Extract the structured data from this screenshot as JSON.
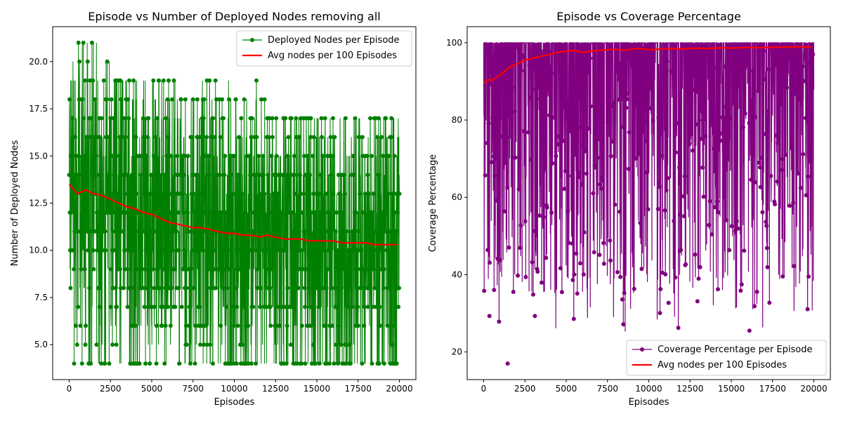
{
  "chart_data": [
    {
      "type": "line",
      "title": "Episode vs Number of Deployed Nodes removing all",
      "xlabel": "Episodes",
      "ylabel": "Number of Deployed Nodes",
      "xlim": [
        -1000,
        21000
      ],
      "ylim": [
        3.15,
        21.85
      ],
      "xticks": [
        0,
        2500,
        5000,
        7500,
        10000,
        12500,
        15000,
        17500,
        20000
      ],
      "xtick_labels": [
        "0",
        "2500",
        "5000",
        "7500",
        "10000",
        "12500",
        "15000",
        "17500",
        "20000"
      ],
      "yticks": [
        5.0,
        7.5,
        10.0,
        12.5,
        15.0,
        17.5,
        20.0
      ],
      "ytick_labels": [
        "5.0",
        "7.5",
        "10.0",
        "12.5",
        "15.0",
        "17.5",
        "20.0"
      ],
      "legend_position": "upper right",
      "series": [
        {
          "name": "Deployed Nodes per Episode",
          "color": "#008000",
          "marker": "circle",
          "episodes": 20000,
          "value_range": [
            4,
            21
          ]
        },
        {
          "name": "Avg nodes per 100 Episodes",
          "color": "#ff0000",
          "x": [
            0,
            500,
            1000,
            1500,
            2000,
            2500,
            3000,
            3500,
            4000,
            4500,
            5000,
            5500,
            6000,
            6500,
            7000,
            7500,
            8000,
            8500,
            9000,
            9500,
            10000,
            10500,
            11000,
            11500,
            12000,
            12500,
            13000,
            13500,
            14000,
            14500,
            15000,
            15500,
            16000,
            16500,
            17000,
            17500,
            18000,
            18500,
            19000,
            19500,
            19900
          ],
          "values": [
            13.5,
            13.0,
            13.2,
            13.0,
            12.9,
            12.7,
            12.5,
            12.3,
            12.2,
            12.0,
            11.9,
            11.7,
            11.5,
            11.4,
            11.3,
            11.2,
            11.2,
            11.1,
            11.0,
            10.9,
            10.9,
            10.8,
            10.8,
            10.7,
            10.8,
            10.7,
            10.6,
            10.6,
            10.6,
            10.5,
            10.5,
            10.5,
            10.5,
            10.4,
            10.4,
            10.4,
            10.4,
            10.3,
            10.3,
            10.3,
            10.3
          ]
        }
      ]
    },
    {
      "type": "line",
      "title": "Episode vs Coverage Percentage",
      "xlabel": "Episodes",
      "ylabel": "Coverage Percentage",
      "xlim": [
        -1000,
        21000
      ],
      "ylim": [
        12.85,
        104.15
      ],
      "xticks": [
        0,
        2500,
        5000,
        7500,
        10000,
        12500,
        15000,
        17500,
        20000
      ],
      "xtick_labels": [
        "0",
        "2500",
        "5000",
        "7500",
        "10000",
        "12500",
        "15000",
        "17500",
        "20000"
      ],
      "yticks": [
        20,
        40,
        60,
        80,
        100
      ],
      "ytick_labels": [
        "20",
        "40",
        "60",
        "80",
        "100"
      ],
      "legend_position": "lower right",
      "series": [
        {
          "name": "Coverage Percentage per Episode",
          "color": "#800080",
          "marker": "circle",
          "episodes": 20000,
          "value_range": [
            17,
            100
          ]
        },
        {
          "name": "Avg nodes per 100 Episodes",
          "color": "#ff0000",
          "x": [
            0,
            250,
            500,
            750,
            1000,
            1250,
            1500,
            1750,
            2000,
            2500,
            3000,
            3500,
            4000,
            4500,
            5000,
            5500,
            6000,
            6500,
            7000,
            7500,
            8000,
            8500,
            9000,
            9500,
            10000,
            10500,
            11000,
            11500,
            12000,
            12500,
            13000,
            13500,
            14000,
            14500,
            15000,
            15500,
            16000,
            16500,
            17000,
            17500,
            18000,
            18500,
            19000,
            19500,
            19900
          ],
          "values": [
            89.5,
            90.5,
            90.2,
            91.0,
            91.5,
            92.5,
            93.5,
            94.0,
            94.5,
            95.5,
            96.0,
            96.5,
            97.0,
            97.5,
            97.8,
            98.0,
            97.5,
            97.8,
            98.0,
            98.2,
            98.3,
            98.0,
            98.4,
            98.5,
            98.2,
            98.3,
            98.4,
            98.5,
            98.4,
            98.5,
            98.6,
            98.5,
            98.6,
            98.7,
            98.6,
            98.7,
            98.8,
            98.7,
            98.8,
            98.8,
            98.9,
            98.8,
            99.0,
            98.9,
            98.8
          ]
        }
      ]
    }
  ]
}
